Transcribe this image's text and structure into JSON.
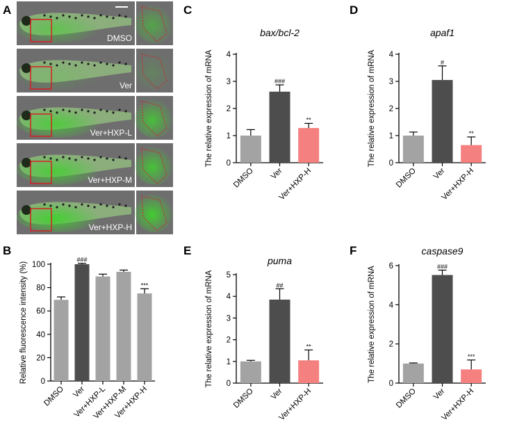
{
  "panel_a": {
    "letter": "A",
    "rows": [
      {
        "label": "DMSO",
        "intensity": 0.55
      },
      {
        "label": "Ver",
        "intensity": 0.2
      },
      {
        "label": "Ver+HXP-L",
        "intensity": 0.8
      },
      {
        "label": "Ver+HXP-M",
        "intensity": 0.85
      },
      {
        "label": "Ver+HXP-H",
        "intensity": 0.95
      }
    ],
    "colors": {
      "fluorescence": "#3fd12e",
      "background": "#6e6e6e",
      "roi": "#d42020"
    }
  },
  "chart_data": [
    {
      "panel": "B",
      "type": "bar",
      "title": "",
      "ylabel": "Relative fluorescence intensity (%)",
      "ylim": [
        0,
        100
      ],
      "yticks": [
        0,
        20,
        40,
        60,
        80,
        100
      ],
      "categories": [
        "DMSO",
        "Ver",
        "Ver+HXP-L",
        "Ver+HXP-M",
        "Ver+HXP-H"
      ],
      "values": [
        69.5,
        100,
        89.5,
        93.5,
        75
      ],
      "errors": [
        2.5,
        0.8,
        2,
        1.5,
        4
      ],
      "annotations": [
        "",
        "###",
        "",
        "",
        "***"
      ],
      "colors": [
        "#a3a3a3",
        "#4d4d4d",
        "#a3a3a3",
        "#a3a3a3",
        "#a3a3a3"
      ]
    },
    {
      "panel": "C",
      "type": "bar",
      "title": "bax/bcl-2",
      "ylabel": "The relative expression of mRNA",
      "ylim": [
        0,
        4
      ],
      "yticks": [
        0,
        1,
        2,
        3,
        4
      ],
      "categories": [
        "DMSO",
        "Ver",
        "Ver+HXP-H"
      ],
      "values": [
        1.0,
        2.62,
        1.28
      ],
      "errors": [
        0.22,
        0.25,
        0.17
      ],
      "annotations": [
        "",
        "###",
        "**"
      ],
      "colors": [
        "#a3a3a3",
        "#4d4d4d",
        "#f58080"
      ]
    },
    {
      "panel": "D",
      "type": "bar",
      "title": "apaf1",
      "ylabel": "The relative expression of mRNA",
      "ylim": [
        0,
        4
      ],
      "yticks": [
        0,
        1,
        2,
        3,
        4
      ],
      "categories": [
        "DMSO",
        "Ver",
        "Ver+HXP-H"
      ],
      "values": [
        1.0,
        3.05,
        0.65
      ],
      "errors": [
        0.13,
        0.52,
        0.3
      ],
      "annotations": [
        "",
        "#",
        "**"
      ],
      "colors": [
        "#a3a3a3",
        "#4d4d4d",
        "#f58080"
      ]
    },
    {
      "panel": "E",
      "type": "bar",
      "title": "puma",
      "ylabel": "The relative expression of mRNA",
      "ylim": [
        0,
        5
      ],
      "yticks": [
        0,
        1,
        2,
        3,
        4,
        5
      ],
      "categories": [
        "DMSO",
        "Ver",
        "Ver+HXP-H"
      ],
      "values": [
        1.0,
        3.85,
        1.05
      ],
      "errors": [
        0.05,
        0.5,
        0.48
      ],
      "annotations": [
        "",
        "##",
        "**"
      ],
      "colors": [
        "#a3a3a3",
        "#4d4d4d",
        "#f58080"
      ]
    },
    {
      "panel": "F",
      "type": "bar",
      "title": "caspase9",
      "ylabel": "The relative expression of mRNA",
      "ylim": [
        0,
        6
      ],
      "yticks": [
        0,
        2,
        4,
        6
      ],
      "categories": [
        "DMSO",
        "Ver",
        "Ver+HXP-H"
      ],
      "values": [
        1.0,
        5.52,
        0.7
      ],
      "errors": [
        0.03,
        0.25,
        0.48
      ],
      "annotations": [
        "",
        "###",
        "***"
      ],
      "colors": [
        "#a3a3a3",
        "#4d4d4d",
        "#f58080"
      ]
    }
  ]
}
